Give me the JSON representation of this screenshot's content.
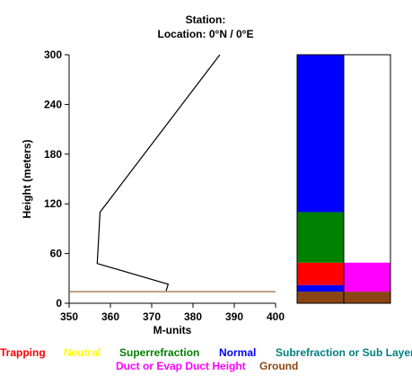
{
  "header": {
    "station": "Station:",
    "location": "Location:   0°N /   0°E"
  },
  "chart_data": [
    {
      "type": "line",
      "xlabel": "M-units",
      "ylabel": "Height (meters)",
      "xlim": [
        350,
        400
      ],
      "ylim": [
        0,
        300
      ],
      "xticks": [
        350,
        360,
        370,
        380,
        390,
        400
      ],
      "yticks": [
        0,
        60,
        120,
        180,
        240,
        300
      ],
      "grid": false,
      "series": [
        {
          "color": "#000000",
          "points": [
            [
              373.5,
              15
            ],
            [
              374,
              23
            ],
            [
              356.8,
              48
            ],
            [
              357.5,
              110
            ],
            [
              386.5,
              300
            ]
          ]
        }
      ],
      "reference_line": {
        "y": 14,
        "color": "#8b5a2b"
      }
    },
    {
      "type": "bar",
      "columns": [
        {
          "segments": [
            {
              "from": 0,
              "to": 14,
              "category": "Ground"
            },
            {
              "from": 14,
              "to": 22,
              "category": "Normal"
            },
            {
              "from": 22,
              "to": 49,
              "category": "Trapping"
            },
            {
              "from": 49,
              "to": 110,
              "category": "Superrefraction"
            },
            {
              "from": 110,
              "to": 300,
              "category": "Normal"
            }
          ]
        },
        {
          "segments": [
            {
              "from": 0,
              "to": 14,
              "category": "Ground"
            },
            {
              "from": 14,
              "to": 49,
              "category": "Duct or Evap Duct Height"
            }
          ]
        }
      ]
    }
  ],
  "legend": {
    "items": [
      {
        "label": "Trapping",
        "color": "#ff0000"
      },
      {
        "label": "Neutral",
        "color": "#ffff00"
      },
      {
        "label": "Superrefraction",
        "color": "#008000"
      },
      {
        "label": "Normal",
        "color": "#0000ff"
      },
      {
        "label": "Subrefraction or Sub Layer",
        "color": "#008080"
      },
      {
        "label": "Duct or Evap Duct Height",
        "color": "#ff00ff"
      },
      {
        "label": "Ground",
        "color": "#8b4513"
      }
    ]
  }
}
